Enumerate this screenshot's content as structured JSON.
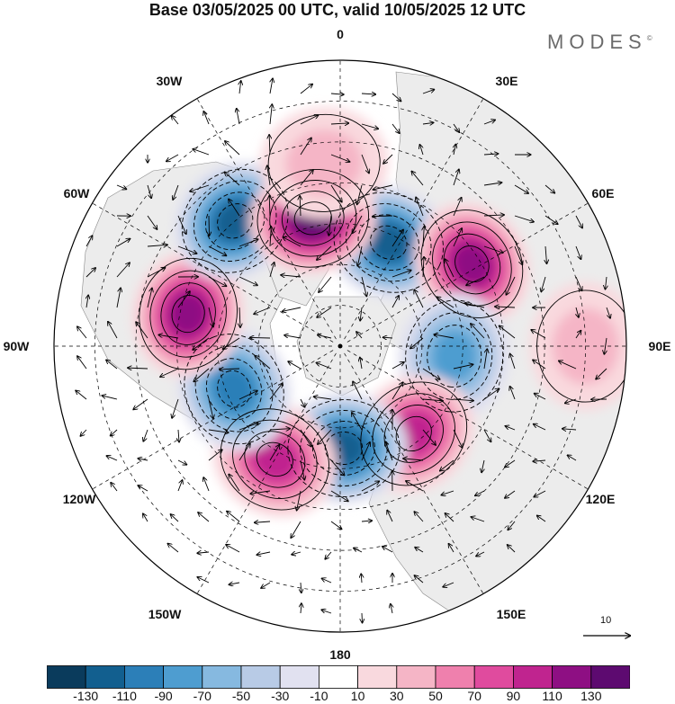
{
  "title": "Base 03/05/2025 00 UTC, valid 10/05/2025 12 UTC",
  "brand": "MODES",
  "brand_mark": "©",
  "longitude_labels": [
    "0",
    "30E",
    "60E",
    "90E",
    "120E",
    "150E",
    "180",
    "150W",
    "120W",
    "90W",
    "60W",
    "30W"
  ],
  "reference_vector_label": "10",
  "colorbar": {
    "tick_labels": [
      "-130",
      "-110",
      "-90",
      "-70",
      "-50",
      "-30",
      "-10",
      "10",
      "30",
      "50",
      "70",
      "90",
      "110",
      "130"
    ],
    "colors": [
      "#0a3b5c",
      "#125f8f",
      "#2c7fb8",
      "#4e9dd0",
      "#86b9e0",
      "#b8cbe6",
      "#e1e1f0",
      "#ffffff",
      "#f9d9de",
      "#f5b5c6",
      "#ef80ad",
      "#e04b9e",
      "#c0248f",
      "#8e0f83",
      "#5d0a70"
    ]
  },
  "anomaly_centers": [
    {
      "lon": 25,
      "lat": 62,
      "value": -110
    },
    {
      "lon": 58,
      "lat": 52,
      "value": 100
    },
    {
      "lon": 95,
      "lat": 62,
      "value": -60
    },
    {
      "lon": 140,
      "lat": 62,
      "value": 80
    },
    {
      "lon": 178,
      "lat": 65,
      "value": -100
    },
    {
      "lon": -150,
      "lat": 58,
      "value": 90
    },
    {
      "lon": -112,
      "lat": 62,
      "value": -95
    },
    {
      "lon": -78,
      "lat": 52,
      "value": 110
    },
    {
      "lon": -40,
      "lat": 50,
      "value": -110
    },
    {
      "lon": -12,
      "lat": 58,
      "value": 120
    },
    {
      "lon": -5,
      "lat": 45,
      "value": 25
    },
    {
      "lon": 90,
      "lat": 30,
      "value": 20
    }
  ]
}
